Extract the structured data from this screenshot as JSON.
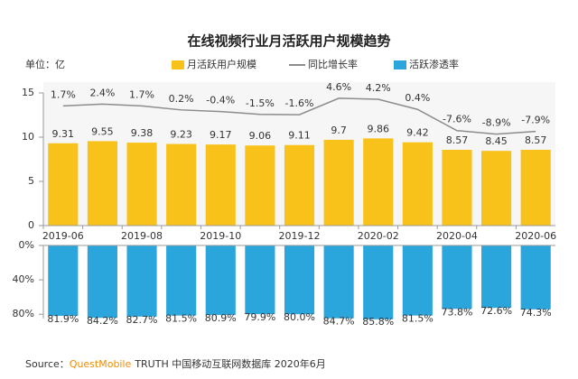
{
  "chart_data": [
    {
      "type": "bar",
      "title": "在线视频行业月活跃用户规模趋势",
      "unit_label": "单位：亿",
      "categories": [
        "2019-06",
        null,
        "2019-08",
        null,
        "2019-10",
        null,
        "2019-12",
        null,
        "2020-02",
        null,
        "2020-04",
        null,
        "2020-06"
      ],
      "series": [
        {
          "name": "月活跃用户规模",
          "color": "#f9c21b",
          "values": [
            9.31,
            9.55,
            9.38,
            9.23,
            9.17,
            9.06,
            9.11,
            9.7,
            9.86,
            9.42,
            8.57,
            8.45,
            8.57
          ]
        },
        {
          "name": "同比增长率",
          "type": "line",
          "axis": "y2",
          "color": "#8c8c8c",
          "values": [
            1.7,
            2.4,
            1.7,
            0.2,
            -0.4,
            -1.5,
            -1.6,
            4.6,
            4.2,
            0.4,
            -7.6,
            -8.9,
            -7.9
          ],
          "value_labels": [
            "1.7%",
            "2.4%",
            "1.7%",
            "0.2%",
            "-0.4%",
            "-1.5%",
            "-1.6%",
            "4.6%",
            "4.2%",
            "0.4%",
            "-7.6%",
            "-8.9%",
            "-7.9%"
          ]
        }
      ],
      "ylim": [
        0,
        15
      ],
      "yticks": [
        0,
        5,
        10,
        15
      ],
      "y2lim": [
        -40,
        10
      ]
    },
    {
      "type": "bar",
      "inverted": true,
      "series": [
        {
          "name": "活跃渗透率",
          "color": "#2ba6dc",
          "values": [
            81.9,
            84.2,
            82.7,
            81.5,
            80.9,
            79.9,
            80.0,
            84.7,
            85.8,
            81.5,
            73.8,
            72.6,
            74.3
          ],
          "value_labels": [
            "81.9%",
            "84.2%",
            "82.7%",
            "81.5%",
            "80.9%",
            "79.9%",
            "80.0%",
            "84.7%",
            "85.8%",
            "81.5%",
            "73.8%",
            "72.6%",
            "74.3%"
          ]
        }
      ],
      "ylim": [
        0,
        85
      ],
      "yticks": [
        {
          "value": 0,
          "label": "0%"
        },
        {
          "value": 40,
          "label": "40%"
        },
        {
          "value": 80,
          "label": "80%"
        }
      ]
    }
  ],
  "source": {
    "label": "Source：",
    "brand": "QuestMobile",
    "text": "TRUTH 中国移动互联网数据库 2020年6月"
  }
}
